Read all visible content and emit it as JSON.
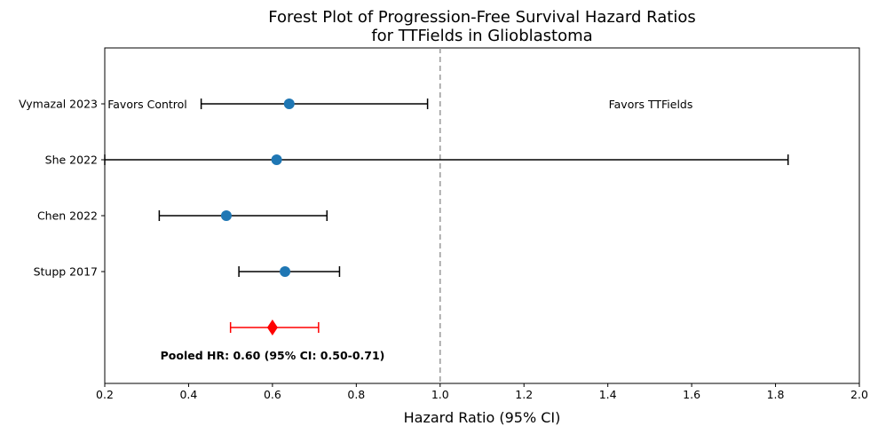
{
  "chart_data": {
    "type": "forest",
    "title_lines": [
      "Forest Plot of Progression-Free Survival Hazard Ratios",
      "for TTFields in Glioblastoma"
    ],
    "xlabel": "Hazard Ratio (95% CI)",
    "xlim": [
      0.2,
      2.0
    ],
    "xticks": [
      "0.2",
      "0.4",
      "0.6",
      "0.8",
      "1.0",
      "1.2",
      "1.4",
      "1.6",
      "1.8",
      "2.0"
    ],
    "reference_line": 1.0,
    "studies": [
      {
        "name": "Vymazal 2023",
        "hr": 0.64,
        "lower": 0.43,
        "upper": 0.97
      },
      {
        "name": "She 2022",
        "hr": 0.61,
        "lower": 0.2,
        "upper": 1.83
      },
      {
        "name": "Chen 2022",
        "hr": 0.49,
        "lower": 0.33,
        "upper": 0.73
      },
      {
        "name": "Stupp 2017",
        "hr": 0.63,
        "lower": 0.52,
        "upper": 0.76
      }
    ],
    "pooled": {
      "hr": 0.6,
      "lower": 0.5,
      "upper": 0.71,
      "label": "Pooled HR: 0.60 (95% CI: 0.50-0.71)"
    },
    "annotations": {
      "left": "Favors Control",
      "right": "Favors TTFields"
    },
    "colors": {
      "study_point": "#1f77b4",
      "study_line": "#000000",
      "pooled": "#ff0000",
      "reference": "#999999"
    }
  }
}
